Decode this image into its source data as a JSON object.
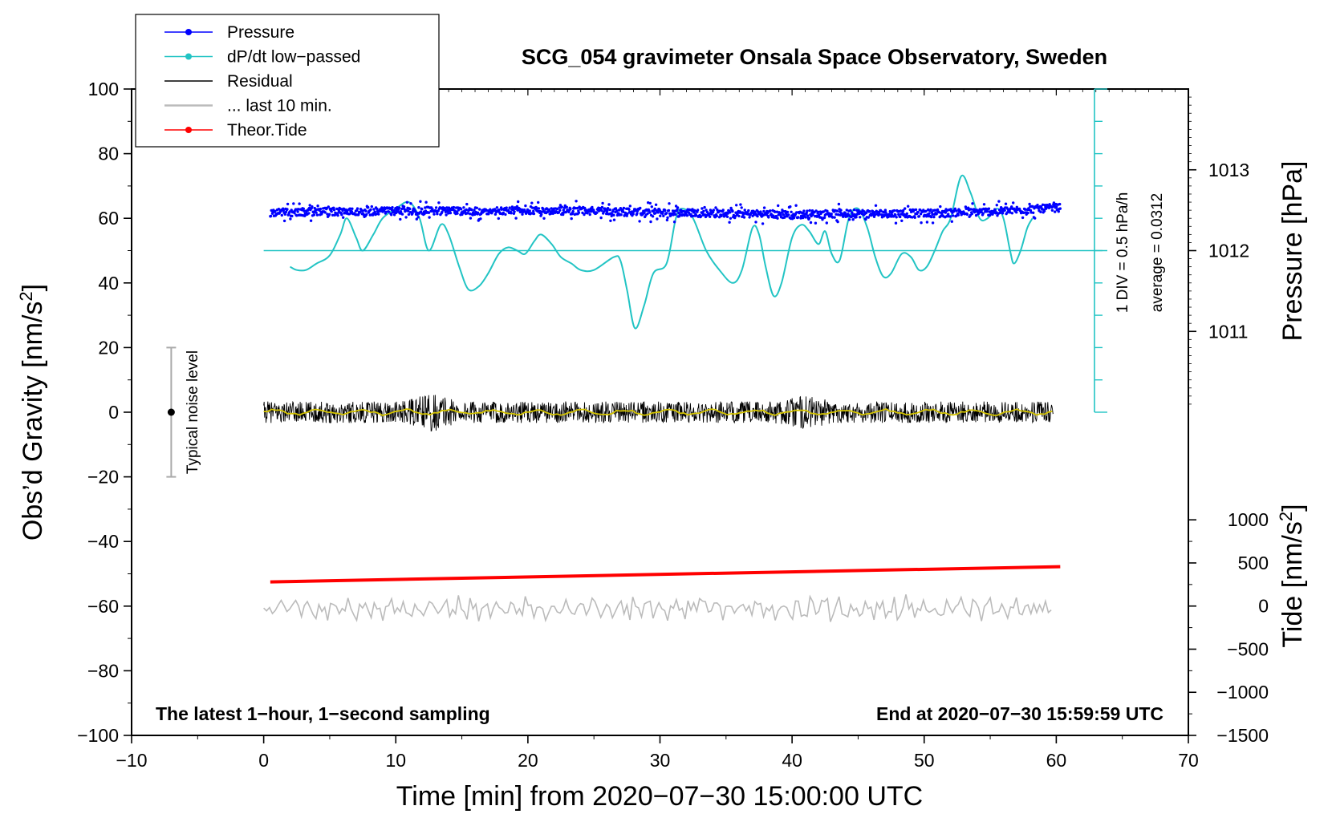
{
  "chart_data": {
    "type": "line",
    "title": "SCG_054 gravimeter Onsala Space Observatory, Sweden",
    "xlabel": "Time [min] from 2020−07−30 15:00:00 UTC",
    "ylabel_main": "Obs’d Gravity [nm/s",
    "ylabel_sup": "2",
    "ylabel_close": "]",
    "ylabel_pressure": "Pressure [hPa]",
    "ylabel_tide_main": "Tide [nm/s",
    "ylabel_tide_sup": "2",
    "ylabel_tide_close": "]",
    "xlim": [
      -10,
      70
    ],
    "ylim": [
      -100,
      100
    ],
    "x_ticks": [
      -10,
      0,
      10,
      20,
      30,
      40,
      50,
      60,
      70
    ],
    "x_tick_labels": [
      "−10",
      "0",
      "10",
      "20",
      "30",
      "40",
      "50",
      "60",
      "70"
    ],
    "y_ticks": [
      -100,
      -80,
      -60,
      -40,
      -20,
      0,
      20,
      40,
      60,
      80,
      100
    ],
    "y_tick_labels": [
      "−100",
      "−80",
      "−60",
      "−40",
      "−20",
      "0",
      "20",
      "40",
      "60",
      "80",
      "100"
    ],
    "pressure_axis": {
      "ticks": [
        1011,
        1012,
        1013
      ],
      "tick_labels": [
        "1011",
        "1012",
        "1013"
      ],
      "range_hPa": [
        1010,
        1014
      ],
      "gravity_at_range": [
        0,
        100
      ]
    },
    "tide_axis": {
      "ticks": [
        -1500,
        -1000,
        -500,
        0,
        500,
        1000
      ],
      "tick_labels": [
        "−1500",
        "−1000",
        "−500",
        "0",
        "500",
        "1000"
      ],
      "range_nm_s2": [
        -1500,
        1000
      ],
      "gravity_at_range": [
        -100,
        -33.3
      ]
    },
    "dpdt_scale": {
      "label": "1 DIV = 0.5 hPa/h",
      "average_label": "average = 0.0312",
      "baseline_gravity": 50,
      "divisions": 10,
      "gravity_range": [
        0,
        100
      ]
    },
    "noise_level": {
      "label": "Typical noise level",
      "x": -7,
      "center": 0,
      "range": [
        -20,
        20
      ]
    },
    "series": [
      {
        "name": "Pressure",
        "color": "#0000ff",
        "style": "dots",
        "x_range": [
          0.5,
          60.3
        ],
        "points": [
          [
            0.5,
            61.8
          ],
          [
            5,
            62.0
          ],
          [
            10,
            62.3
          ],
          [
            15,
            62.2
          ],
          [
            20,
            62.4
          ],
          [
            25,
            62.3
          ],
          [
            30,
            61.8
          ],
          [
            35,
            61.5
          ],
          [
            40,
            61.2
          ],
          [
            45,
            61.5
          ],
          [
            50,
            61.5
          ],
          [
            55,
            62.1
          ],
          [
            60.3,
            63.3
          ]
        ],
        "scatter": 2.0
      },
      {
        "name": "dP/dt low−passed",
        "color": "#22c4c4",
        "style": "line",
        "points": [
          [
            2,
            45
          ],
          [
            2.5,
            44
          ],
          [
            3.2,
            44
          ],
          [
            4,
            46
          ],
          [
            5,
            48.5
          ],
          [
            5.8,
            55
          ],
          [
            6.3,
            60
          ],
          [
            7,
            54
          ],
          [
            7.5,
            50
          ],
          [
            8.3,
            55
          ],
          [
            9,
            60
          ],
          [
            10,
            63
          ],
          [
            11,
            65
          ],
          [
            11.8,
            60
          ],
          [
            12.5,
            50
          ],
          [
            13.4,
            58
          ],
          [
            14,
            55
          ],
          [
            14.8,
            45
          ],
          [
            15.5,
            38
          ],
          [
            16.3,
            39
          ],
          [
            17,
            43
          ],
          [
            17.8,
            49
          ],
          [
            18.5,
            51
          ],
          [
            19.2,
            50
          ],
          [
            19.8,
            49
          ],
          [
            20.5,
            53
          ],
          [
            21,
            55
          ],
          [
            21.8,
            52
          ],
          [
            22.5,
            48
          ],
          [
            23.3,
            46
          ],
          [
            24,
            44
          ],
          [
            25,
            44
          ],
          [
            26.5,
            48
          ],
          [
            27,
            47
          ],
          [
            27.5,
            38
          ],
          [
            28.1,
            26
          ],
          [
            28.8,
            33
          ],
          [
            29.5,
            43
          ],
          [
            30.5,
            46
          ],
          [
            31.2,
            60
          ],
          [
            31.7,
            63
          ],
          [
            32.5,
            60
          ],
          [
            33.5,
            50
          ],
          [
            34.5,
            44
          ],
          [
            35.5,
            40
          ],
          [
            36.2,
            44
          ],
          [
            37,
            57
          ],
          [
            37.5,
            55
          ],
          [
            38,
            45
          ],
          [
            38.6,
            36
          ],
          [
            39.2,
            40
          ],
          [
            40,
            54
          ],
          [
            40.7,
            58
          ],
          [
            41.3,
            56
          ],
          [
            42,
            52
          ],
          [
            42.5,
            56
          ],
          [
            43,
            49
          ],
          [
            43.6,
            47
          ],
          [
            44.3,
            60
          ],
          [
            45,
            63
          ],
          [
            45.7,
            57
          ],
          [
            46.3,
            48
          ],
          [
            46.9,
            42
          ],
          [
            47.5,
            43
          ],
          [
            48.3,
            49
          ],
          [
            49,
            48
          ],
          [
            49.6,
            44
          ],
          [
            50.2,
            45
          ],
          [
            50.8,
            50
          ],
          [
            51.4,
            56
          ],
          [
            52,
            60
          ],
          [
            52.8,
            73
          ],
          [
            53.5,
            68
          ],
          [
            54.2,
            60
          ],
          [
            54.8,
            60
          ],
          [
            55.5,
            63
          ],
          [
            56,
            60
          ],
          [
            56.5,
            50
          ],
          [
            56.8,
            46
          ],
          [
            57.3,
            50
          ],
          [
            57.8,
            57
          ],
          [
            58.2,
            60
          ]
        ]
      },
      {
        "name": "Residual",
        "color": "#000000",
        "style": "line",
        "x_range": [
          0,
          59.8
        ],
        "center": 0,
        "amplitude": 3.5
      },
      {
        "name": "... last 10 min.",
        "color": "#bbbbbb",
        "style": "line",
        "x_range": [
          0,
          59.8
        ],
        "center": -60.8,
        "amplitude": 3.2
      },
      {
        "name": "Theor.Tide",
        "color": "#ff0000",
        "style": "line",
        "points": [
          [
            0.5,
            -52.5
          ],
          [
            60.3,
            -47.8
          ]
        ]
      },
      {
        "name": "Residual smoothed",
        "color": "#d4c400",
        "style": "line",
        "x_range": [
          0,
          59.8
        ],
        "center": 0,
        "amplitude": 1.2
      }
    ],
    "legend": {
      "position": "top-left",
      "items": [
        {
          "label": "Pressure",
          "color": "#0000ff",
          "marker": "dot"
        },
        {
          "label": "dP/dt low−passed",
          "color": "#22c4c4",
          "marker": "dot"
        },
        {
          "label": "Residual",
          "color": "#000000",
          "marker": "none"
        },
        {
          "label": "... last 10 min.",
          "color": "#bbbbbb",
          "marker": "none"
        },
        {
          "label": "Theor.Tide",
          "color": "#ff0000",
          "marker": "dot"
        }
      ]
    },
    "footer_left": "The latest 1−hour, 1−second sampling",
    "footer_right": "End at 2020−07−30 15:59:59 UTC"
  }
}
